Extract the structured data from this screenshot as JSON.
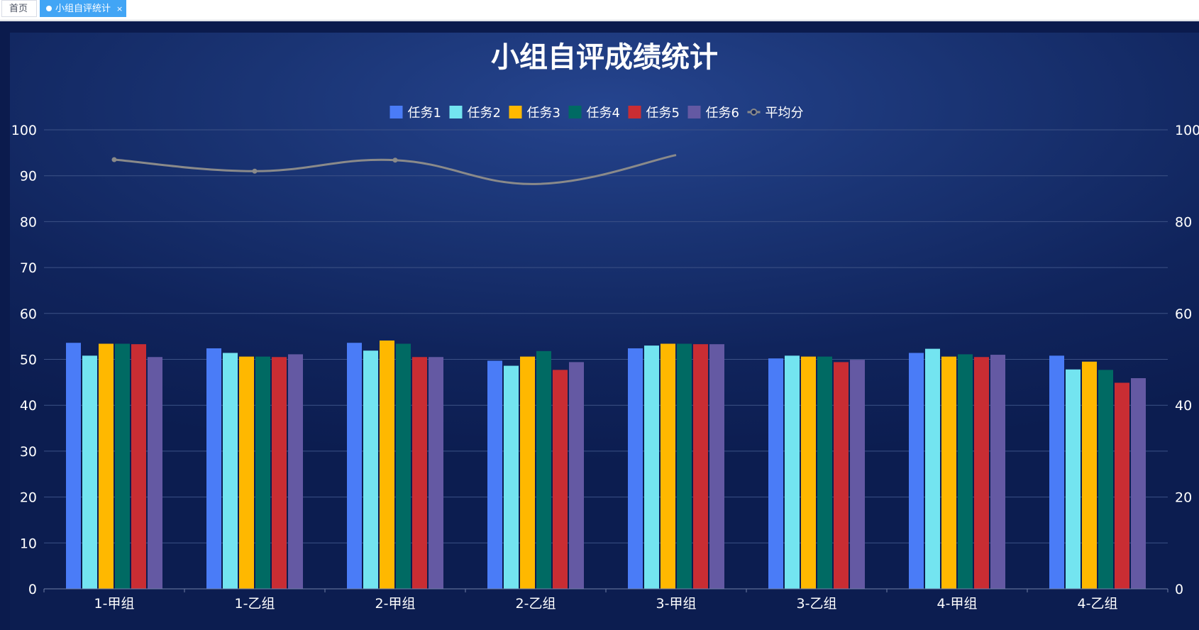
{
  "tabs": [
    {
      "label": "首页",
      "active": false
    },
    {
      "label": "小组自评统计",
      "active": true
    }
  ],
  "chart_data": {
    "type": "bar",
    "title": "小组自评成绩统计",
    "categories": [
      "1-甲组",
      "1-乙组",
      "2-甲组",
      "2-乙组",
      "3-甲组",
      "3-乙组",
      "4-甲组",
      "4-乙组"
    ],
    "series": [
      {
        "name": "任务1",
        "type": "bar",
        "color": "#4a7cf7",
        "values": [
          53.6,
          52.4,
          53.6,
          49.7,
          52.4,
          50.2,
          51.4,
          50.8
        ]
      },
      {
        "name": "任务2",
        "type": "bar",
        "color": "#73e4f0",
        "values": [
          50.8,
          51.4,
          51.9,
          48.6,
          53.0,
          50.8,
          52.3,
          47.8
        ]
      },
      {
        "name": "任务3",
        "type": "bar",
        "color": "#ffb800",
        "values": [
          53.4,
          50.6,
          54.1,
          50.6,
          53.4,
          50.6,
          50.6,
          49.5
        ]
      },
      {
        "name": "任务4",
        "type": "bar",
        "color": "#006a63",
        "values": [
          53.4,
          50.6,
          53.4,
          51.8,
          53.4,
          50.6,
          51.1,
          47.7
        ]
      },
      {
        "name": "任务5",
        "type": "bar",
        "color": "#c92d33",
        "values": [
          53.3,
          50.5,
          50.5,
          47.7,
          53.3,
          49.4,
          50.5,
          44.9
        ]
      },
      {
        "name": "任务6",
        "type": "bar",
        "color": "#6459a3",
        "values": [
          50.5,
          51.1,
          50.5,
          49.4,
          53.3,
          49.9,
          51.0,
          45.9
        ]
      },
      {
        "name": "平均分",
        "type": "line",
        "color": "#8a8a8a",
        "values": [
          93.5,
          91.0,
          93.4,
          88.2,
          94.5,
          null,
          null,
          null
        ]
      }
    ],
    "ylim": [
      0,
      100
    ],
    "left_ticks": [
      0,
      10,
      20,
      30,
      40,
      50,
      60,
      70,
      80,
      90,
      100
    ],
    "right_ticks": [
      0,
      20,
      40,
      60,
      80,
      100
    ],
    "grid": true,
    "legend_position": "top-center"
  }
}
